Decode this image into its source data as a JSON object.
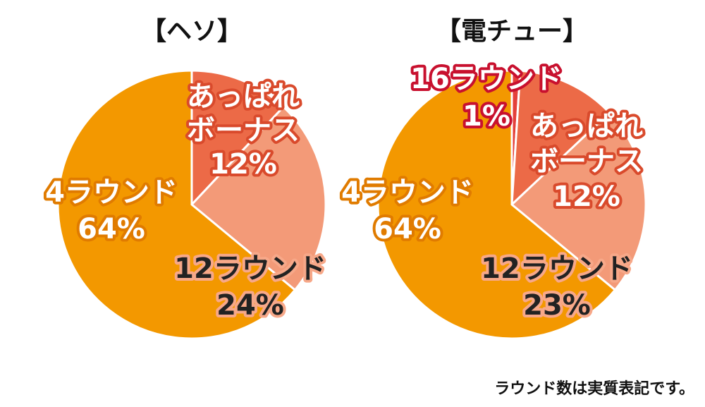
{
  "chart_data": [
    {
      "type": "pie",
      "title": "【ヘソ】",
      "slices": [
        {
          "name": "あっぱれボーナス",
          "value": 12,
          "display": "12%",
          "color": "#ec6a47"
        },
        {
          "name": "12ラウンド",
          "value": 24,
          "display": "24%",
          "color": "#f39a78"
        },
        {
          "name": "4ラウンド",
          "value": 64,
          "display": "64%",
          "color": "#f39800"
        }
      ]
    },
    {
      "type": "pie",
      "title": "【電チュー】",
      "slices": [
        {
          "name": "16ラウンド",
          "value": 1,
          "display": "1%",
          "color": "#e4403a"
        },
        {
          "name": "あっぱれボーナス",
          "value": 12,
          "display": "12%",
          "color": "#ec6a47"
        },
        {
          "name": "12ラウンド",
          "value": 23,
          "display": "23%",
          "color": "#f39a78"
        },
        {
          "name": "4ラウンド",
          "value": 64,
          "display": "64%",
          "color": "#f39800"
        }
      ]
    }
  ],
  "labels": {
    "heso": {
      "appare_line1": "あっぱれ",
      "appare_line2": "ボーナス",
      "appare_pct": "12%",
      "r12_line1": "12ラウンド",
      "r12_pct": "24%",
      "r4_line1": "4ラウンド",
      "r4_pct": "64%"
    },
    "denchu": {
      "r16_line1": "16ラウンド",
      "r16_pct": "1%",
      "appare_line1": "あっぱれ",
      "appare_line2": "ボーナス",
      "appare_pct": "12%",
      "r12_line1": "12ラウンド",
      "r12_pct": "23%",
      "r4_line1": "4ラウンド",
      "r4_pct": "64%"
    }
  },
  "footnote": "ラウンド数は実質表記です。"
}
